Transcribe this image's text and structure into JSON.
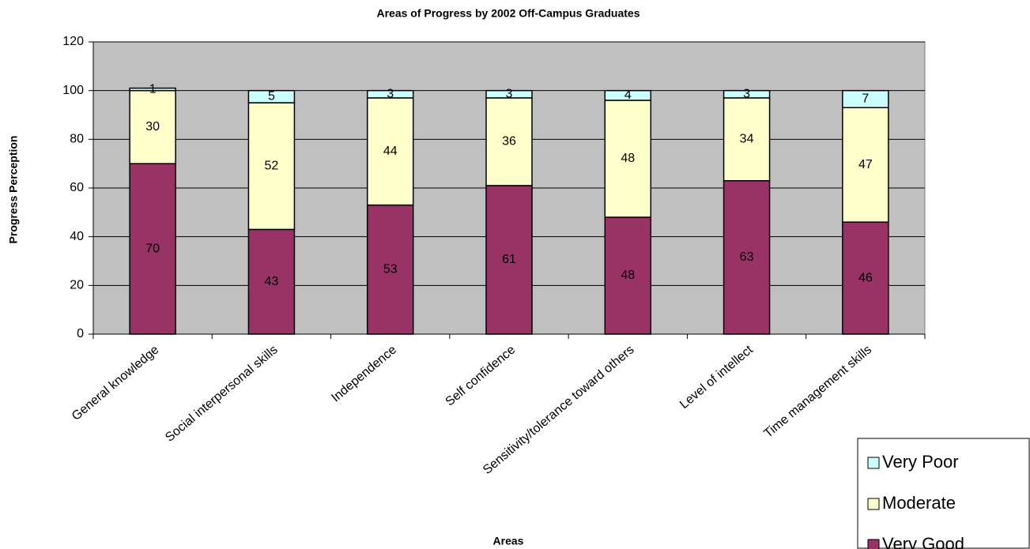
{
  "chart_data": {
    "type": "stacked_bar",
    "title": "Areas of Progress by 2002 Off-Campus Graduates",
    "x_label": "Areas",
    "y_label": "Progress Perception",
    "categories": [
      "General knowledge",
      "Social interpersonal skills",
      "Independence",
      "Self confidence",
      "Sensitivity/tolerance toward others",
      "Level of intellect",
      "Time management skills"
    ],
    "series": [
      {
        "name": "Very Good",
        "color": "#993366",
        "values": [
          70,
          43,
          53,
          61,
          48,
          63,
          46
        ]
      },
      {
        "name": "Moderate",
        "color": "#ffffcc",
        "values": [
          30,
          52,
          44,
          36,
          48,
          34,
          47
        ]
      },
      {
        "name": "Very Poor",
        "color": "#ccffff",
        "values": [
          1,
          5,
          3,
          3,
          4,
          3,
          7
        ]
      }
    ],
    "ylim": [
      0,
      120
    ],
    "yticks": [
      0,
      20,
      40,
      60,
      80,
      100,
      120
    ],
    "grid": true,
    "plot_background": "#c0c0c0",
    "legend": "bottom-right"
  }
}
